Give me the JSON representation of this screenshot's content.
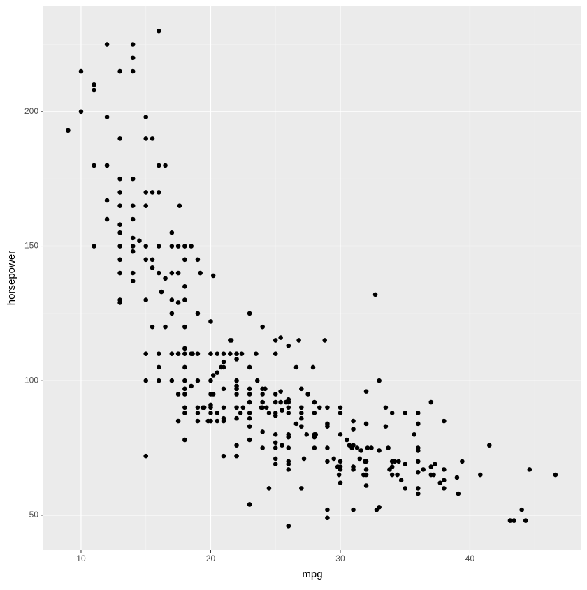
{
  "chart_data": {
    "type": "scatter",
    "x_label": "mpg",
    "y_label": "horsepower",
    "xlim": [
      7.09,
      48.6
    ],
    "ylim": [
      37.0,
      239.4
    ],
    "xticks": [
      10,
      20,
      30,
      40
    ],
    "yticks": [
      50,
      100,
      150,
      200
    ],
    "grid": true,
    "color": "#000000",
    "series": [
      {
        "x": [
          9,
          10,
          10,
          11,
          11,
          11,
          11,
          12,
          12,
          12,
          12,
          12,
          12,
          13,
          13,
          13,
          13,
          13,
          13,
          13,
          13,
          13,
          13,
          13,
          13,
          14,
          14,
          14,
          14,
          14,
          14,
          14,
          14,
          14,
          14,
          14,
          14.5,
          15,
          15,
          15,
          15,
          15,
          15,
          15,
          15,
          15,
          15,
          15.5,
          15.5,
          15.5,
          15.5,
          15.5,
          16,
          16,
          16,
          16,
          16,
          16,
          16,
          16,
          16.5,
          16.5,
          16.2,
          16.5,
          17,
          17,
          17,
          17,
          17,
          17,
          17,
          17.5,
          17.5,
          17.5,
          17.5,
          17.5,
          17.5,
          17.6,
          18,
          18,
          18,
          18,
          18,
          18,
          18,
          18,
          18,
          18,
          18,
          18,
          18,
          18,
          18.5,
          18.5,
          18.5,
          18.6,
          19,
          19,
          19,
          19,
          19,
          19,
          19,
          19.2,
          19.4,
          19.5,
          19.8,
          20,
          20,
          20,
          20,
          20,
          20,
          20,
          20,
          20.2,
          20.2,
          20.5,
          20.2,
          20.5,
          20.5,
          20.5,
          20.8,
          21,
          21,
          21,
          21,
          21,
          21,
          21,
          21,
          21.5,
          21.5,
          21.6,
          22,
          22,
          22,
          22,
          22,
          22,
          22,
          22,
          22,
          22,
          22.3,
          22.5,
          22.4,
          23,
          23,
          23,
          23,
          23,
          23,
          23,
          23,
          23,
          23,
          23.5,
          23.6,
          23.9,
          24,
          24,
          24,
          24,
          24,
          24,
          24,
          24.2,
          24.5,
          24.5,
          24.3,
          25,
          25,
          25,
          25,
          25,
          25,
          25,
          25,
          25,
          25,
          25,
          25.4,
          25.4,
          25.5,
          25.4,
          25.5,
          25.8,
          26,
          26,
          26,
          26,
          26,
          26,
          26,
          26,
          26,
          26,
          26,
          26,
          26,
          26.6,
          26.6,
          26.8,
          27,
          27,
          27,
          27,
          27,
          27,
          27.2,
          27.4,
          27.5,
          27.9,
          28,
          28,
          28,
          28,
          28,
          28.1,
          28.4,
          28.8,
          29,
          29,
          29,
          29,
          29,
          29,
          29,
          29.5,
          29.8,
          29.9,
          30,
          30,
          30,
          30,
          30,
          30,
          30,
          30.5,
          30.7,
          30.9,
          31,
          31,
          31,
          31,
          31,
          31,
          31.3,
          31.5,
          31.6,
          31.8,
          31.9,
          32,
          32,
          32,
          32,
          32,
          32,
          32.1,
          32.4,
          32.7,
          32.8,
          33,
          33,
          33,
          33.5,
          33.5,
          33.7,
          33.8,
          34,
          34,
          34,
          34,
          34.2,
          34.4,
          34.5,
          34.7,
          35,
          35,
          35,
          35.7,
          36,
          36,
          36,
          36,
          36,
          36,
          36,
          36,
          36.4,
          37,
          37,
          37,
          37.2,
          37.3,
          37.7,
          38,
          38,
          38,
          38,
          39,
          39.1,
          39.4,
          40.8,
          41.5,
          43.1,
          43.4,
          44,
          44.3,
          44.6,
          46.6
        ],
        "values": [
          193,
          215,
          200,
          210,
          208,
          180,
          150,
          225,
          198,
          180,
          180,
          167,
          160,
          215,
          190,
          175,
          170,
          165,
          158,
          155,
          150,
          145,
          140,
          130,
          129,
          225,
          220,
          215,
          175,
          165,
          160,
          153,
          150,
          148,
          140,
          137,
          152,
          198,
          190,
          170,
          165,
          150,
          145,
          130,
          110,
          100,
          72,
          190,
          170,
          145,
          142,
          120,
          230,
          180,
          170,
          150,
          140,
          110,
          105,
          100,
          180,
          138,
          133,
          120,
          155,
          150,
          140,
          130,
          125,
          110,
          100,
          150,
          140,
          129,
          110,
          95,
          85,
          165,
          150,
          145,
          135,
          130,
          120,
          112,
          110,
          105,
          100,
          97,
          95,
          90,
          88,
          78,
          150,
          110,
          98,
          110,
          145,
          125,
          110,
          100,
          90,
          88,
          85,
          140,
          90,
          90,
          85,
          122,
          110,
          100,
          95,
          91,
          90,
          88,
          85,
          139,
          102,
          110,
          95,
          103,
          88,
          85,
          105,
          110,
          107,
          105,
          97,
          90,
          86,
          85,
          72,
          115,
          110,
          115,
          110,
          108,
          100,
          98,
          97,
          95,
          90,
          86,
          76,
          72,
          88,
          90,
          110,
          125,
          105,
          97,
          95,
          92,
          88,
          86,
          83,
          78,
          54,
          110,
          100,
          90,
          120,
          97,
          95,
          92,
          90,
          81,
          75,
          97,
          88,
          60,
          90,
          115,
          110,
          95,
          92,
          88,
          87,
          80,
          77,
          75,
          71,
          69,
          116,
          92,
          89,
          96,
          76,
          92,
          113,
          93,
          92,
          90,
          88,
          80,
          79,
          75,
          70,
          69,
          67,
          46,
          46,
          105,
          84,
          115,
          97,
          90,
          88,
          86,
          83,
          60,
          71,
          80,
          95,
          105,
          92,
          88,
          80,
          79,
          75,
          80,
          90,
          115,
          90,
          84,
          83,
          75,
          70,
          52,
          49,
          71,
          68,
          65,
          90,
          88,
          80,
          70,
          68,
          67,
          62,
          78,
          76,
          75,
          85,
          82,
          76,
          68,
          67,
          52,
          75,
          71,
          74,
          65,
          70,
          84,
          96,
          70,
          67,
          65,
          61,
          75,
          75,
          132,
          52,
          100,
          53,
          74,
          83,
          90,
          75,
          67,
          88,
          70,
          68,
          65,
          70,
          65,
          70,
          63,
          88,
          69,
          60,
          80,
          88,
          84,
          75,
          74,
          70,
          66,
          60,
          58,
          67,
          92,
          68,
          65,
          65,
          69,
          62,
          85,
          67,
          63,
          60,
          64,
          58,
          70,
          65,
          76,
          48,
          48,
          52,
          48,
          67,
          65
        ]
      }
    ]
  }
}
